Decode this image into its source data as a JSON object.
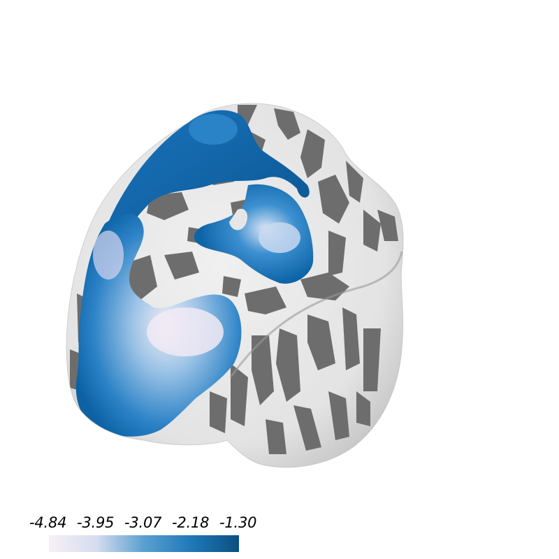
{
  "scene": {
    "description_type": "3D inflated cortical surface render",
    "background_color": "#ffffff",
    "surface_light": "#e8e8e8",
    "surface_dark": "#6e6e6e",
    "overlay_colors": [
      "#0a5a94",
      "#1f78c0",
      "#5aa0d6",
      "#c8d6ee",
      "#f4eef6"
    ]
  },
  "colorbar": {
    "ticks": [
      "-4.84",
      "-3.95",
      "-3.07",
      "-2.18",
      "-1.30"
    ],
    "gradient_stops": [
      "#f7f0f7",
      "#d6dcee",
      "#5aa0d0",
      "#1f78b8",
      "#0b4f80"
    ]
  }
}
